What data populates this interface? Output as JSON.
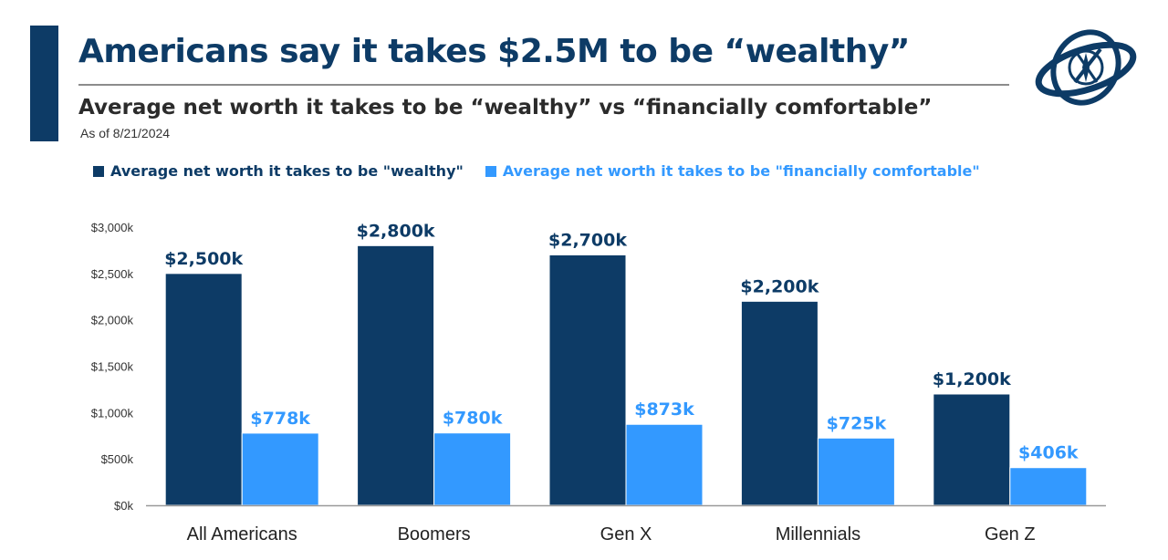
{
  "header": {
    "title": "Americans say it takes $2.5M to be “wealthy”",
    "subtitle": "Average net worth it takes to be “wealthy” vs “financially comfortable”",
    "as_of": "As of 8/21/2024",
    "logo_icon": "compass-globe-logo-icon"
  },
  "colors": {
    "accent": "#0d3b66",
    "wealthy": "#0d3b66",
    "comfortable": "#3399ff",
    "axis": "#999999"
  },
  "chart_data": {
    "type": "bar",
    "categories": [
      "All Americans",
      "Boomers",
      "Gen X",
      "Millennials",
      "Gen Z"
    ],
    "series": [
      {
        "name": "Average net worth it takes to be \"wealthy\"",
        "values": [
          2500,
          2800,
          2700,
          2200,
          1200
        ],
        "labels": [
          "$2,500k",
          "$2,800k",
          "$2,700k",
          "$2,200k",
          "$1,200k"
        ]
      },
      {
        "name": "Average net worth it takes to be \"financially comfortable\"",
        "values": [
          778,
          780,
          873,
          725,
          406
        ],
        "labels": [
          "$778k",
          "$780k",
          "$873k",
          "$725k",
          "$406k"
        ]
      }
    ],
    "ylim": [
      0,
      3000
    ],
    "yticks": [
      0,
      500,
      1000,
      1500,
      2000,
      2500,
      3000
    ],
    "ytick_labels": [
      "$0k",
      "$500k",
      "$1,000k",
      "$1,500k",
      "$2,000k",
      "$2,500k",
      "$3,000k"
    ],
    "grid": false,
    "legend": "top"
  }
}
